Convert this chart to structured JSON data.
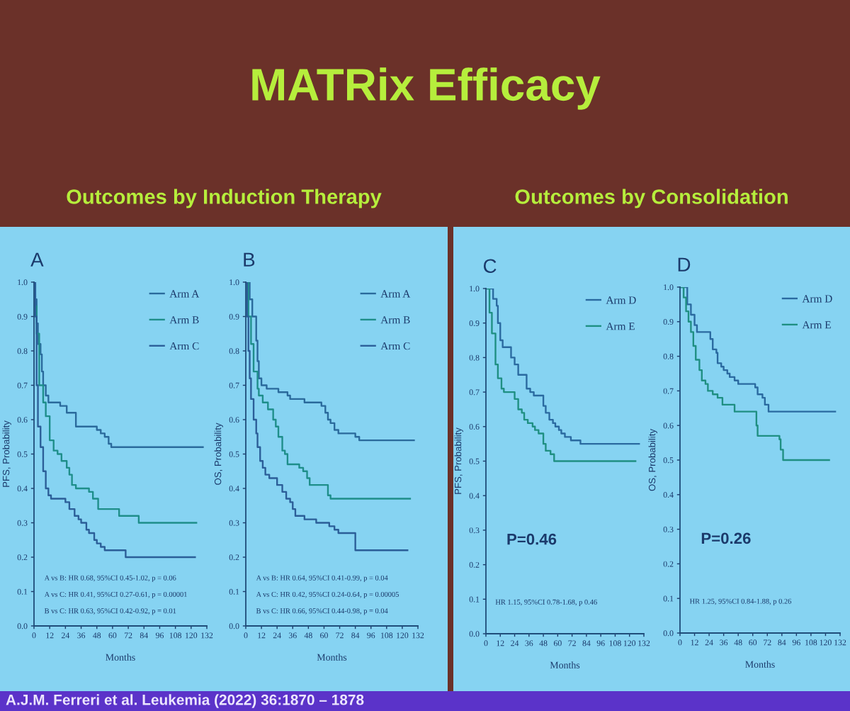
{
  "chart_data": [
    {
      "type": "other",
      "title": "MATRix Efficacy",
      "annotations": [
        "Outcomes by Induction Therapy",
        "Outcomes by Consolidation",
        "A.J.M. Ferreri et al. Leukemia (2022) 36:1870 – 1878"
      ]
    },
    {
      "type": "step",
      "title": "A",
      "xlabel": "Months",
      "ylabel": "PFS, Probability",
      "xlim": [
        0,
        132
      ],
      "xticks": [
        0,
        12,
        24,
        36,
        48,
        60,
        72,
        84,
        96,
        108,
        120,
        132
      ],
      "ylim": [
        0,
        1
      ],
      "yticks": [
        {
          "value": 0,
          "label": "0.0"
        },
        {
          "value": 0.1,
          "label": "0.1"
        },
        {
          "value": 0.2,
          "label": "0.2"
        },
        {
          "value": 0.3,
          "label": "0.3"
        },
        {
          "value": 0.4,
          "label": "0.4"
        },
        {
          "value": 0.5,
          "label": "0.5"
        },
        {
          "value": 0.6,
          "label": "0.6"
        },
        {
          "value": 0.7,
          "label": "0.7"
        },
        {
          "value": 0.8,
          "label": "0.8"
        },
        {
          "value": 0.9,
          "label": "0.9"
        },
        {
          "value": 1,
          "label": "1.0"
        }
      ],
      "legend": "top right",
      "series": [
        {
          "name": "Arm A",
          "color": "#2a6a9c",
          "x": [
            0,
            1,
            2,
            3,
            5,
            6,
            7,
            9,
            11,
            20,
            25,
            32,
            48,
            51,
            54,
            57,
            59,
            129
          ],
          "values": [
            1.0,
            0.95,
            0.88,
            0.82,
            0.79,
            0.74,
            0.7,
            0.67,
            0.65,
            0.64,
            0.62,
            0.58,
            0.57,
            0.56,
            0.55,
            0.53,
            0.52,
            0.52
          ]
        },
        {
          "name": "Arm B",
          "color": "#1e8e8a",
          "x": [
            0,
            1,
            2,
            4,
            7,
            9,
            12,
            15,
            18,
            21,
            25,
            27,
            29,
            32,
            42,
            45,
            49,
            65,
            80,
            124
          ],
          "values": [
            1.0,
            0.93,
            0.85,
            0.7,
            0.65,
            0.61,
            0.54,
            0.51,
            0.5,
            0.48,
            0.46,
            0.44,
            0.41,
            0.4,
            0.39,
            0.37,
            0.34,
            0.32,
            0.3,
            0.3
          ]
        },
        {
          "name": "Arm C",
          "color": "#2b5e98",
          "x": [
            0,
            1,
            2,
            3,
            5,
            7,
            9,
            11,
            13,
            24,
            27,
            31,
            34,
            36,
            40,
            42,
            46,
            48,
            51,
            54,
            70,
            123
          ],
          "values": [
            1.0,
            0.9,
            0.7,
            0.58,
            0.52,
            0.45,
            0.4,
            0.38,
            0.37,
            0.36,
            0.34,
            0.32,
            0.31,
            0.3,
            0.28,
            0.27,
            0.25,
            0.24,
            0.23,
            0.22,
            0.2,
            0.2
          ]
        }
      ],
      "annotations": [
        "A vs B: HR 0.68, 95%CI 0.45-1.02, p = 0.06",
        "A vs C: HR 0.41, 95%CI 0.27-0.61, p = 0.00001",
        "B vs C: HR 0.63, 95%CI 0.42-0.92, p = 0.01"
      ]
    },
    {
      "type": "step",
      "title": "B",
      "xlabel": "Months",
      "ylabel": "OS, Probability",
      "xlim": [
        0,
        132
      ],
      "xticks": [
        0,
        12,
        24,
        36,
        48,
        60,
        72,
        84,
        96,
        108,
        120,
        132
      ],
      "ylim": [
        0,
        1
      ],
      "yticks": [
        {
          "value": 0,
          "label": "0.0"
        },
        {
          "value": 0.1,
          "label": "0.1"
        },
        {
          "value": 0.2,
          "label": "0.2"
        },
        {
          "value": 0.3,
          "label": "0.3"
        },
        {
          "value": 0.4,
          "label": "0.4"
        },
        {
          "value": 0.5,
          "label": "0.5"
        },
        {
          "value": 0.6,
          "label": "0.6"
        },
        {
          "value": 0.7,
          "label": "0.7"
        },
        {
          "value": 0.8,
          "label": "0.8"
        },
        {
          "value": 0.9,
          "label": "0.9"
        },
        {
          "value": 1,
          "label": "1.0"
        }
      ],
      "legend": "top right",
      "series": [
        {
          "name": "Arm A",
          "color": "#2a6a9c",
          "x": [
            0,
            3,
            5,
            8,
            9,
            10,
            12,
            16,
            25,
            32,
            34,
            45,
            58,
            61,
            63,
            65,
            68,
            71,
            84,
            87,
            129
          ],
          "values": [
            1.0,
            0.95,
            0.9,
            0.83,
            0.77,
            0.72,
            0.7,
            0.69,
            0.68,
            0.67,
            0.66,
            0.65,
            0.64,
            0.62,
            0.6,
            0.59,
            0.57,
            0.56,
            0.55,
            0.54,
            0.54
          ]
        },
        {
          "name": "Arm B",
          "color": "#1e8e8a",
          "x": [
            0,
            2,
            4,
            6,
            9,
            10,
            13,
            17,
            21,
            23,
            25,
            28,
            30,
            32,
            41,
            44,
            47,
            49,
            63,
            65,
            126
          ],
          "values": [
            1.0,
            0.9,
            0.82,
            0.74,
            0.69,
            0.67,
            0.65,
            0.63,
            0.6,
            0.58,
            0.55,
            0.51,
            0.5,
            0.47,
            0.46,
            0.45,
            0.43,
            0.41,
            0.38,
            0.37,
            0.37
          ]
        },
        {
          "name": "Arm C",
          "color": "#2b5e98",
          "x": [
            0,
            1,
            2,
            3,
            4,
            6,
            8,
            9,
            11,
            13,
            15,
            18,
            24,
            28,
            31,
            34,
            36,
            38,
            45,
            54,
            64,
            68,
            71,
            84,
            124
          ],
          "values": [
            1.0,
            0.9,
            0.8,
            0.72,
            0.66,
            0.6,
            0.56,
            0.52,
            0.48,
            0.46,
            0.44,
            0.43,
            0.41,
            0.39,
            0.37,
            0.36,
            0.34,
            0.32,
            0.31,
            0.3,
            0.29,
            0.28,
            0.27,
            0.22,
            0.22
          ]
        }
      ],
      "annotations": [
        "A vs B: HR 0.64, 95%CI 0.41-0.99, p = 0.04",
        "A vs C: HR 0.42, 95%CI 0.24-0.64, p = 0.00005",
        "B vs C: HR 0.66, 95%CI 0.44-0.98, p = 0.04"
      ]
    },
    {
      "type": "step",
      "title": "C",
      "subtitle": "P=0.46",
      "xlabel": "Months",
      "ylabel": "PFS, Probability",
      "xlim": [
        0,
        132
      ],
      "xticks": [
        0,
        12,
        24,
        36,
        48,
        60,
        72,
        84,
        96,
        108,
        120,
        132
      ],
      "ylim": [
        0,
        1
      ],
      "yticks": [
        {
          "value": 0,
          "label": "0.0"
        },
        {
          "value": 0.1,
          "label": "0.1"
        },
        {
          "value": 0.2,
          "label": "0.2"
        },
        {
          "value": 0.3,
          "label": "0.3"
        },
        {
          "value": 0.4,
          "label": "0.4"
        },
        {
          "value": 0.5,
          "label": "0.5"
        },
        {
          "value": 0.6,
          "label": "0.6"
        },
        {
          "value": 0.7,
          "label": "0.7"
        },
        {
          "value": 0.8,
          "label": "0.8"
        },
        {
          "value": 0.9,
          "label": "0.9"
        },
        {
          "value": 1,
          "label": "1.0"
        }
      ],
      "legend": "top right",
      "series": [
        {
          "name": "Arm D",
          "color": "#2a6aa0",
          "x": [
            0,
            6,
            9,
            10,
            12,
            14,
            21,
            24,
            27,
            34,
            37,
            40,
            48,
            50,
            53,
            56,
            58,
            61,
            63,
            66,
            71,
            79,
            128
          ],
          "values": [
            1.0,
            0.97,
            0.95,
            0.9,
            0.85,
            0.83,
            0.8,
            0.78,
            0.75,
            0.71,
            0.7,
            0.69,
            0.66,
            0.64,
            0.62,
            0.61,
            0.6,
            0.59,
            0.58,
            0.57,
            0.56,
            0.55,
            0.55
          ]
        },
        {
          "name": "Arm E",
          "color": "#1f8f82",
          "x": [
            0,
            3,
            5,
            8,
            10,
            13,
            15,
            24,
            27,
            30,
            32,
            35,
            39,
            41,
            44,
            48,
            50,
            54,
            57,
            125
          ],
          "values": [
            1.0,
            0.93,
            0.87,
            0.78,
            0.74,
            0.71,
            0.7,
            0.68,
            0.65,
            0.64,
            0.62,
            0.61,
            0.6,
            0.59,
            0.58,
            0.55,
            0.53,
            0.52,
            0.5,
            0.5
          ]
        }
      ],
      "annotations": [
        "HR 1.15, 95%CI 0.78-1.68, p 0.46"
      ]
    },
    {
      "type": "step",
      "title": "D",
      "subtitle": "P=0.26",
      "xlabel": "Months",
      "ylabel": "OS, Probability",
      "xlim": [
        0,
        132
      ],
      "xticks": [
        0,
        12,
        24,
        36,
        48,
        60,
        72,
        84,
        96,
        108,
        120,
        132
      ],
      "ylim": [
        0,
        1
      ],
      "yticks": [
        {
          "value": 0,
          "label": "0.0"
        },
        {
          "value": 0.1,
          "label": "0.1"
        },
        {
          "value": 0.2,
          "label": "0.2"
        },
        {
          "value": 0.3,
          "label": "0.3"
        },
        {
          "value": 0.4,
          "label": "0.4"
        },
        {
          "value": 0.5,
          "label": "0.5"
        },
        {
          "value": 0.6,
          "label": "0.6"
        },
        {
          "value": 0.7,
          "label": "0.7"
        },
        {
          "value": 0.8,
          "label": "0.8"
        },
        {
          "value": 0.9,
          "label": "0.9"
        },
        {
          "value": 1,
          "label": "1.0"
        }
      ],
      "legend": "top right",
      "series": [
        {
          "name": "Arm D",
          "color": "#2a6aa0",
          "x": [
            0,
            6,
            9,
            12,
            14,
            25,
            27,
            30,
            31,
            34,
            36,
            39,
            41,
            45,
            48,
            62,
            64,
            68,
            70,
            73,
            128
          ],
          "values": [
            1.0,
            0.95,
            0.92,
            0.89,
            0.87,
            0.85,
            0.82,
            0.81,
            0.78,
            0.77,
            0.76,
            0.75,
            0.74,
            0.73,
            0.72,
            0.71,
            0.69,
            0.68,
            0.66,
            0.64,
            0.64
          ]
        },
        {
          "name": "Arm E",
          "color": "#1f8f82",
          "x": [
            0,
            3,
            5,
            7,
            9,
            11,
            13,
            16,
            18,
            21,
            23,
            27,
            31,
            35,
            45,
            63,
            64,
            82,
            83,
            85,
            123
          ],
          "values": [
            1.0,
            0.97,
            0.93,
            0.9,
            0.87,
            0.83,
            0.79,
            0.76,
            0.73,
            0.72,
            0.7,
            0.69,
            0.68,
            0.66,
            0.64,
            0.6,
            0.57,
            0.56,
            0.53,
            0.5,
            0.5
          ]
        }
      ],
      "annotations": [
        "HR 1.25, 95%CI 0.84-1.88, p 0.26"
      ]
    }
  ]
}
